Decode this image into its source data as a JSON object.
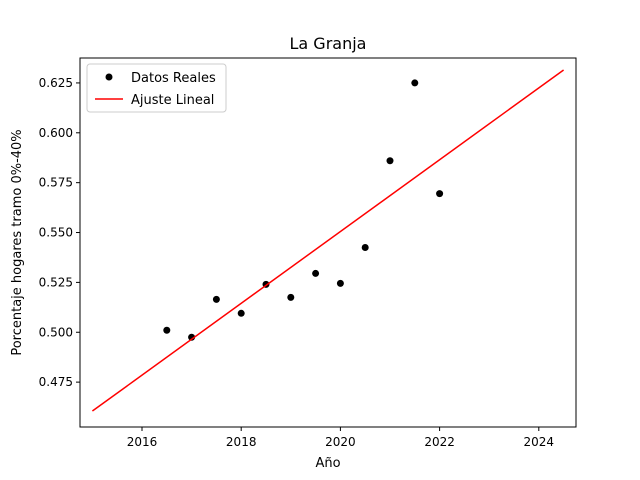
{
  "chart_data": {
    "type": "scatter",
    "title": "La Granja",
    "xlabel": "Año",
    "ylabel": "Porcentaje hogares tramo 0%-40%",
    "xlim": [
      2014.75,
      2024.75
    ],
    "ylim": [
      0.4525,
      0.6375
    ],
    "xticks": [
      2016,
      2018,
      2020,
      2022,
      2024
    ],
    "xtick_labels": [
      "2016",
      "2018",
      "2020",
      "2022",
      "2024"
    ],
    "yticks": [
      0.475,
      0.5,
      0.525,
      0.55,
      0.575,
      0.6,
      0.625
    ],
    "ytick_labels": [
      "0.475",
      "0.500",
      "0.525",
      "0.550",
      "0.575",
      "0.600",
      "0.625"
    ],
    "grid": false,
    "legend_position": "top-left",
    "series": [
      {
        "name": "Datos Reales",
        "kind": "scatter",
        "color": "#000000",
        "points": [
          {
            "x": 2016.5,
            "y": 0.501
          },
          {
            "x": 2017.0,
            "y": 0.4975
          },
          {
            "x": 2017.5,
            "y": 0.5165
          },
          {
            "x": 2018.0,
            "y": 0.5095
          },
          {
            "x": 2018.5,
            "y": 0.524
          },
          {
            "x": 2019.0,
            "y": 0.5175
          },
          {
            "x": 2019.5,
            "y": 0.5295
          },
          {
            "x": 2020.0,
            "y": 0.5245
          },
          {
            "x": 2020.5,
            "y": 0.5425
          },
          {
            "x": 2021.0,
            "y": 0.586
          },
          {
            "x": 2021.5,
            "y": 0.625
          },
          {
            "x": 2022.0,
            "y": 0.5695
          }
        ]
      },
      {
        "name": "Ajuste Lineal",
        "kind": "line",
        "color": "#ff0000",
        "points": [
          {
            "x": 2015.0,
            "y": 0.4605
          },
          {
            "x": 2024.5,
            "y": 0.6315
          }
        ]
      }
    ]
  }
}
